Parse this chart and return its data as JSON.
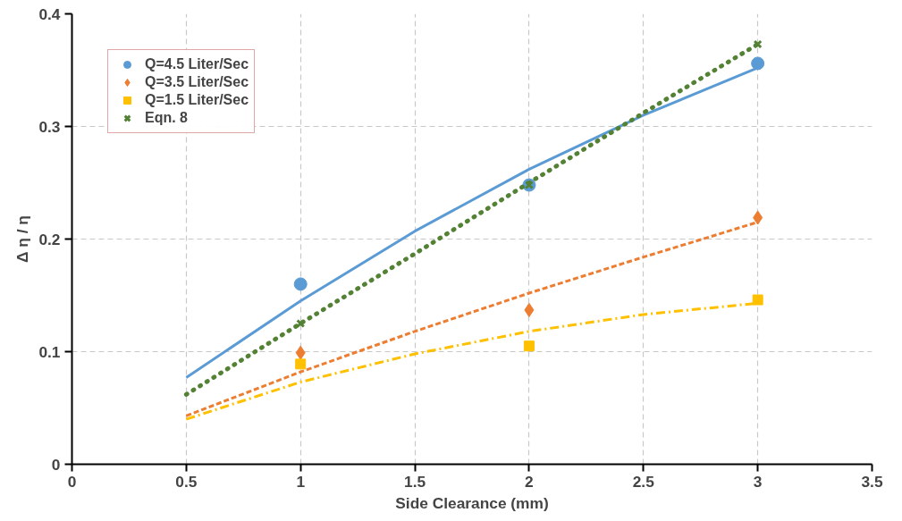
{
  "chart_data": {
    "type": "scatter",
    "xlabel": "Side Clearance (mm)",
    "ylabel": "Δ η / η",
    "xlim": [
      0,
      3.5
    ],
    "xticks": [
      0,
      0.5,
      1,
      1.5,
      2,
      2.5,
      3,
      3.5
    ],
    "ylim": [
      0,
      0.4
    ],
    "yticks": [
      0,
      0.1,
      0.2,
      0.3,
      0.4
    ],
    "grid": true,
    "legend": "top left",
    "series": [
      {
        "name": "Q=4.5 Liter/Sec",
        "marker": "circle",
        "color": "#5b9bd5",
        "x": [
          1,
          2,
          3
        ],
        "values": [
          0.16,
          0.248,
          0.356
        ]
      },
      {
        "name": "Q=3.5 Liter/Sec",
        "marker": "diamond",
        "color": "#ed7d31",
        "x": [
          1,
          2,
          3
        ],
        "values": [
          0.099,
          0.137,
          0.219
        ]
      },
      {
        "name": "Q=1.5 Liter/Sec",
        "marker": "square",
        "color": "#ffc000",
        "x": [
          1,
          2,
          3
        ],
        "values": [
          0.089,
          0.105,
          0.146
        ]
      },
      {
        "name": "Eqn. 8",
        "marker": "cross",
        "color": "#548235",
        "x": [
          1,
          2,
          3
        ],
        "values": [
          0.125,
          0.248,
          0.373
        ]
      },
      {
        "type": "line",
        "line_style": "solid",
        "color": "#5b9bd5",
        "x": [
          0.5,
          1,
          1.5,
          2,
          2.5,
          3
        ],
        "values": [
          0.077,
          0.145,
          0.207,
          0.262,
          0.31,
          0.352
        ]
      },
      {
        "type": "line",
        "line_style": "dashed",
        "color": "#ed7d31",
        "x": [
          0.5,
          1,
          1.5,
          2,
          2.5,
          3
        ],
        "values": [
          0.043,
          0.082,
          0.118,
          0.152,
          0.184,
          0.215
        ]
      },
      {
        "type": "line",
        "line_style": "dashdot",
        "color": "#ffc000",
        "x": [
          0.5,
          1,
          1.5,
          2,
          2.5,
          3
        ],
        "values": [
          0.04,
          0.073,
          0.098,
          0.118,
          0.133,
          0.143
        ]
      },
      {
        "type": "line",
        "line_style": "dotted",
        "color": "#548235",
        "x": [
          0.5,
          1,
          1.5,
          2,
          2.5,
          3
        ],
        "values": [
          0.062,
          0.125,
          0.187,
          0.25,
          0.312,
          0.373
        ]
      }
    ]
  }
}
